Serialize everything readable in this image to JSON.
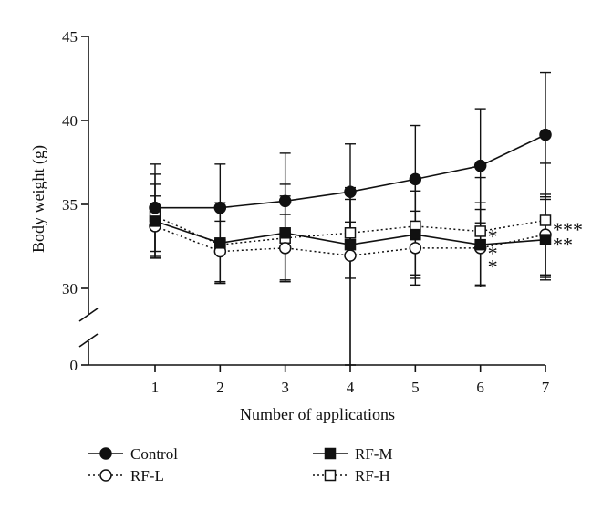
{
  "chart_data": {
    "type": "line",
    "title": "",
    "xlabel": "Number of applications",
    "ylabel": "Body weight (g)",
    "x": [
      1,
      2,
      3,
      4,
      5,
      6,
      7
    ],
    "x_ticks": [
      "1",
      "2",
      "3",
      "4",
      "5",
      "6",
      "7"
    ],
    "y_ticks": [
      0,
      30,
      35,
      40,
      45
    ],
    "y_tick_labels": [
      "0",
      "30",
      "35",
      "40",
      "45"
    ],
    "ylim": [
      0,
      45
    ],
    "y_axis_break": [
      0,
      30
    ],
    "grid": false,
    "legend_position": "bottom",
    "series": [
      {
        "name": "Control",
        "style": "solid",
        "marker": "filled-circle",
        "values": [
          34.8,
          34.8,
          35.2,
          35.75,
          36.5,
          37.3,
          39.15
        ],
        "errors": [
          2.6,
          2.6,
          2.85,
          2.85,
          3.2,
          3.4,
          3.7
        ]
      },
      {
        "name": "RF-L",
        "style": "dotted",
        "marker": "open-circle",
        "values": [
          33.7,
          32.2,
          32.4,
          31.95,
          32.4,
          32.4,
          33.2
        ],
        "errors": [
          1.8,
          1.8,
          2.0,
          2.0,
          2.2,
          2.3,
          2.4
        ]
      },
      {
        "name": "RF-M",
        "style": "solid",
        "marker": "filled-square",
        "values": [
          34.0,
          32.7,
          33.3,
          32.6,
          33.2,
          32.6,
          32.9
        ],
        "errors": [
          2.2,
          2.4,
          2.9,
          2.7,
          2.6,
          2.5,
          2.4
        ]
      },
      {
        "name": "RF-H",
        "style": "dotted",
        "marker": "open-square",
        "values": [
          34.3,
          32.6,
          33.0,
          33.3,
          33.7,
          33.4,
          34.05
        ],
        "errors": [
          2.5,
          2.3,
          2.5,
          2.7,
          2.9,
          3.2,
          3.4
        ]
      }
    ],
    "annotations": [
      {
        "text": "*",
        "x": 6,
        "y": 33.4
      },
      {
        "text": "*",
        "x": 6,
        "y": 32.4
      },
      {
        "text": "*",
        "x": 6,
        "y": 31.6
      },
      {
        "text": "***",
        "x": 7,
        "y": 33.8
      },
      {
        "text": "**",
        "x": 7,
        "y": 32.9
      }
    ]
  }
}
